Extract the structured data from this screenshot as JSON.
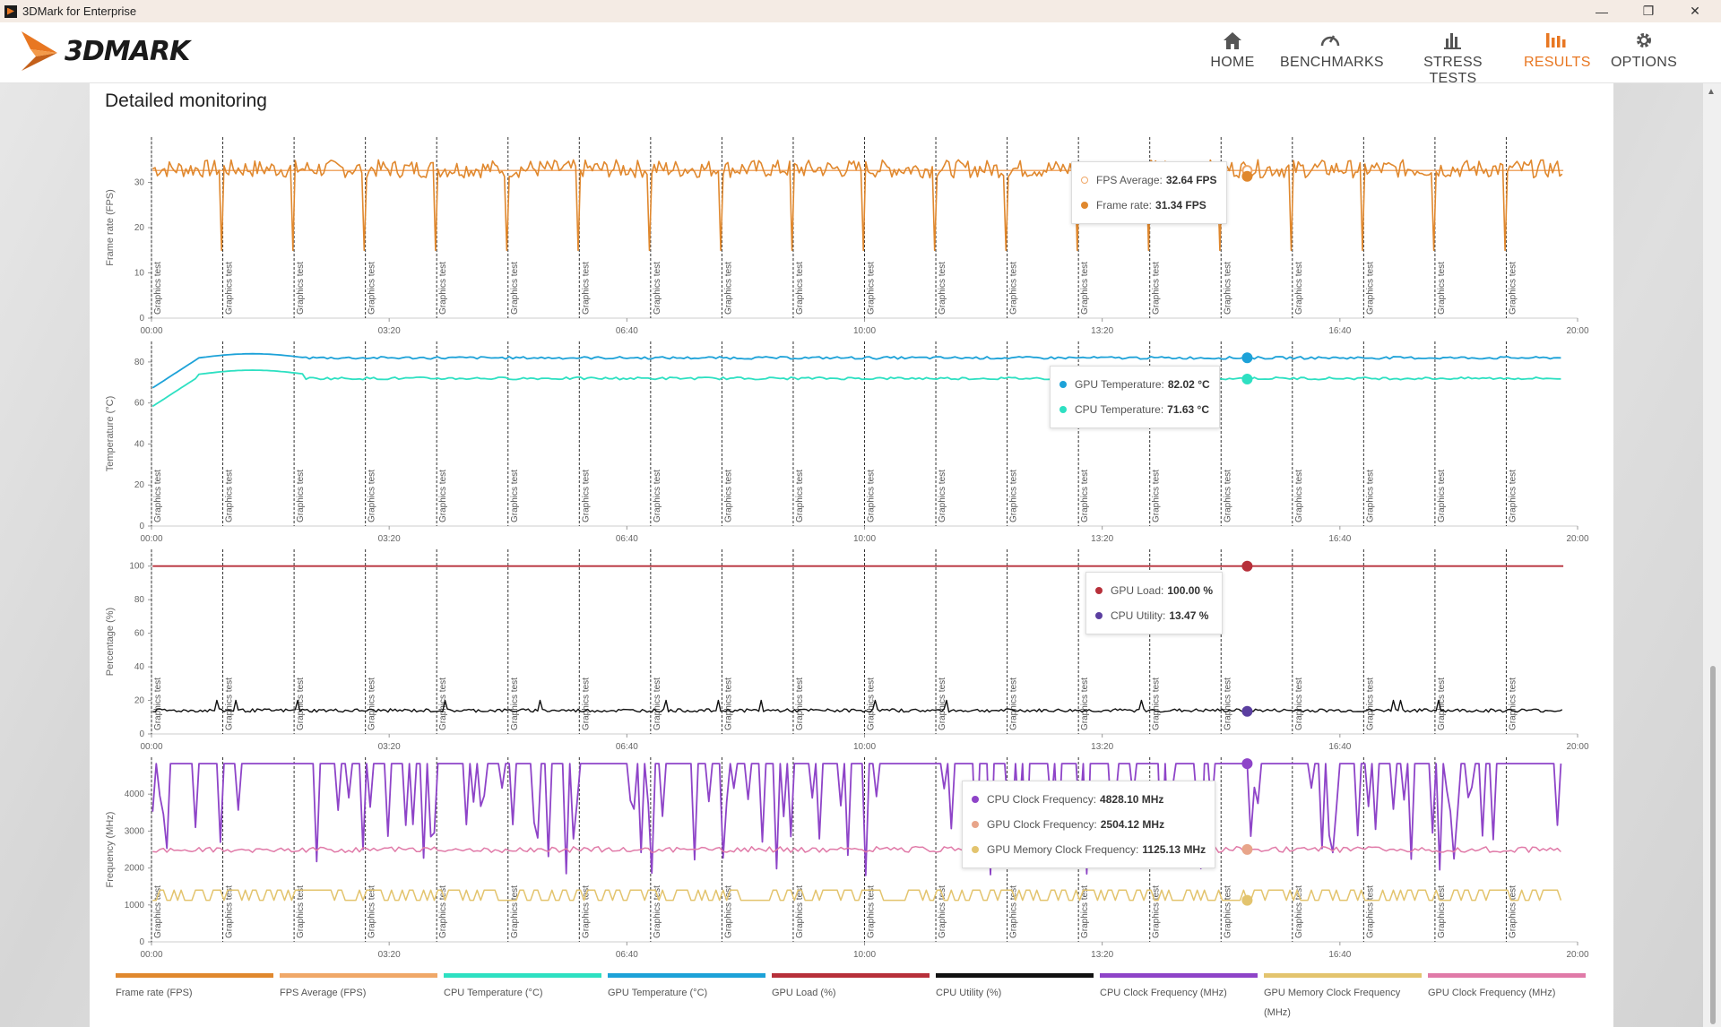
{
  "window": {
    "title": "3DMark for Enterprise",
    "minimize": "—",
    "maximize": "❐",
    "close": "✕"
  },
  "app": {
    "logo_text": "3DMARK"
  },
  "nav": [
    {
      "label": "HOME",
      "icon": "home-icon",
      "active": false
    },
    {
      "label": "BENCHMARKS",
      "icon": "gauge-icon",
      "active": false
    },
    {
      "label": "STRESS TESTS",
      "icon": "bar-chart-icon",
      "active": false
    },
    {
      "label": "RESULTS",
      "icon": "results-icon",
      "active": true
    },
    {
      "label": "OPTIONS",
      "icon": "gear-icon",
      "active": false
    }
  ],
  "section": {
    "heading": "Detailed monitoring"
  },
  "colors": {
    "accent": "#e87722",
    "frame_rate": "#e0882e",
    "fps_average": "#f0a868",
    "cpu_temp": "#2ee0c2",
    "gpu_temp": "#1da2d8",
    "gpu_load": "#b7303a",
    "cpu_utility": "#111111",
    "cpu_clock": "#8e44c8",
    "gpu_mem_clock": "#e3c46e",
    "gpu_clock": "#e07aa8"
  },
  "chart_data": [
    {
      "type": "line",
      "ylabel": "Frame rate (FPS)",
      "yticks": [
        0,
        10,
        20,
        30
      ],
      "ylim": [
        0,
        40
      ],
      "xticks": [
        "00:00",
        "03:20",
        "06:40",
        "10:00",
        "13:20",
        "16:40",
        "20:00"
      ],
      "xlim_seconds": [
        0,
        1200
      ],
      "markers": {
        "label": "Graphics test",
        "times_s": [
          0,
          60,
          120,
          180,
          240,
          300,
          360,
          420,
          480,
          540,
          600,
          660,
          720,
          780,
          840,
          900,
          960,
          1020,
          1080,
          1140
        ]
      },
      "series": [
        {
          "name": "FPS Average",
          "values_summary": {
            "average": 32.64
          },
          "cursor": {
            "t_s": 922,
            "value": 32.64
          }
        },
        {
          "name": "Frame rate",
          "values_summary": {
            "typical": 33,
            "dips_to": 15
          },
          "cursor": {
            "t_s": 922,
            "value": 31.34
          }
        }
      ]
    },
    {
      "type": "line",
      "ylabel": "Temperature (°C)",
      "yticks": [
        0,
        20,
        40,
        60,
        80
      ],
      "ylim": [
        0,
        90
      ],
      "xticks": [
        "00:00",
        "03:20",
        "06:40",
        "10:00",
        "13:20",
        "16:40",
        "20:00"
      ],
      "markers": {
        "label": "Graphics test"
      },
      "series": [
        {
          "name": "GPU Temperature",
          "start": 67,
          "peak": 84,
          "steady": 82,
          "cursor": {
            "t_s": 922,
            "value": 82.02
          }
        },
        {
          "name": "CPU Temperature",
          "start": 58,
          "peak": 78,
          "steady": 72,
          "cursor": {
            "t_s": 922,
            "value": 71.63
          }
        }
      ]
    },
    {
      "type": "line",
      "ylabel": "Percentage (%)",
      "yticks": [
        0,
        20,
        40,
        60,
        80,
        100
      ],
      "ylim": [
        0,
        110
      ],
      "xticks": [
        "00:00",
        "03:20",
        "06:40",
        "10:00",
        "13:20",
        "16:40",
        "20:00"
      ],
      "markers": {
        "label": "Graphics test"
      },
      "series": [
        {
          "name": "GPU Load",
          "steady": 100,
          "cursor": {
            "t_s": 922,
            "value": 100.0
          }
        },
        {
          "name": "CPU Utility",
          "steady": 14,
          "cursor": {
            "t_s": 922,
            "value": 13.47
          }
        }
      ]
    },
    {
      "type": "line",
      "ylabel": "Frequency (MHz)",
      "yticks": [
        0,
        1000,
        2000,
        3000,
        4000
      ],
      "ylim": [
        0,
        5000
      ],
      "xticks": [
        "00:00",
        "03:20",
        "06:40",
        "10:00",
        "13:20",
        "16:40",
        "20:00"
      ],
      "markers": {
        "label": "Graphics test"
      },
      "series": [
        {
          "name": "CPU Clock Frequency",
          "high": 4828,
          "low": 1800,
          "cursor": {
            "t_s": 922,
            "value": 4828.1
          }
        },
        {
          "name": "GPU Clock Frequency",
          "steady": 2500,
          "cursor": {
            "t_s": 922,
            "value": 2504.12
          }
        },
        {
          "name": "GPU Memory Clock Frequency",
          "high": 1400,
          "low": 1125,
          "cursor": {
            "t_s": 922,
            "value": 1125.13
          }
        }
      ]
    }
  ],
  "tooltips": [
    {
      "rows": [
        {
          "label": "FPS Average:",
          "value": "32.64 FPS",
          "color": "#f0a868",
          "hollow": true
        },
        {
          "label": "Frame rate:",
          "value": "31.34 FPS",
          "color": "#e0882e"
        }
      ]
    },
    {
      "rows": [
        {
          "label": "GPU Temperature:",
          "value": "82.02 °C",
          "color": "#1da2d8"
        },
        {
          "label": "CPU Temperature:",
          "value": "71.63 °C",
          "color": "#2ee0c2"
        }
      ]
    },
    {
      "rows": [
        {
          "label": "GPU Load:",
          "value": "100.00 %",
          "color": "#b7303a"
        },
        {
          "label": "CPU Utility:",
          "value": "13.47 %",
          "color": "#5b3fa0"
        }
      ]
    },
    {
      "rows": [
        {
          "label": "CPU Clock Frequency:",
          "value": "4828.10 MHz",
          "color": "#8e44c8"
        },
        {
          "label": "GPU Clock Frequency:",
          "value": "2504.12 MHz",
          "color": "#e8a58a"
        },
        {
          "label": "GPU Memory Clock Frequency:",
          "value": "1125.13 MHz",
          "color": "#e3c46e"
        }
      ]
    }
  ],
  "legend": [
    {
      "label": "Frame rate (FPS)",
      "color": "#e0882e"
    },
    {
      "label": "FPS Average (FPS)",
      "color": "#f0a868"
    },
    {
      "label": "CPU Temperature (°C)",
      "color": "#2ee0c2"
    },
    {
      "label": "GPU Temperature (°C)",
      "color": "#1da2d8"
    },
    {
      "label": "GPU Load (%)",
      "color": "#b7303a"
    },
    {
      "label": "CPU Utility (%)",
      "color": "#111111"
    },
    {
      "label": "CPU Clock Frequency (MHz)",
      "color": "#8e44c8"
    },
    {
      "label": "GPU Memory Clock Frequency (MHz)",
      "color": "#e3c46e"
    },
    {
      "label": "GPU Clock Frequency (MHz)",
      "color": "#e07aa8"
    }
  ]
}
